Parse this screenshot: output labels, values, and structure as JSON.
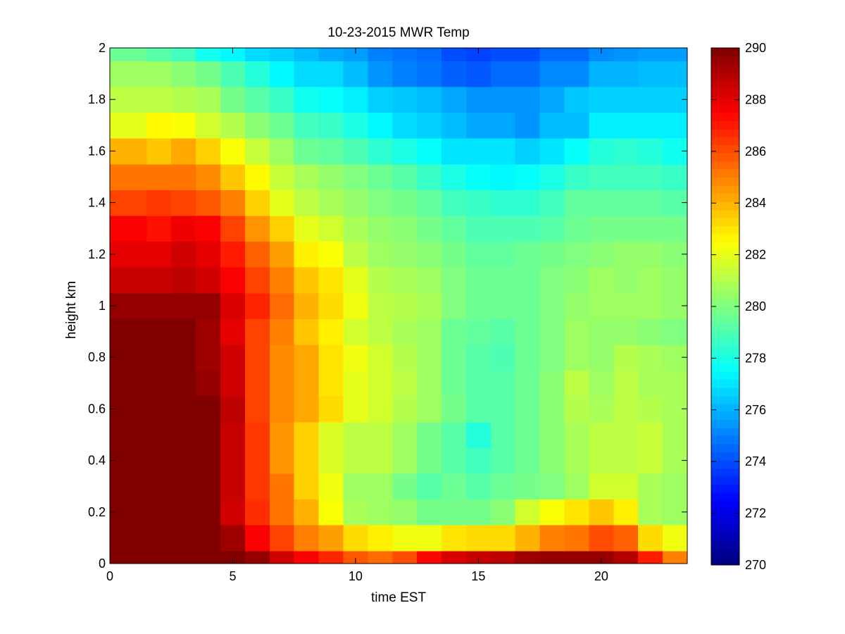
{
  "chart_data": {
    "type": "heatmap",
    "title": "10-23-2015 MWR Temp",
    "xlabel": "time EST",
    "ylabel": "height km",
    "xlim": [
      0,
      23.5
    ],
    "ylim": [
      0,
      2
    ],
    "x_ticks": [
      0,
      5,
      10,
      15,
      20
    ],
    "y_ticks": [
      0,
      0.2,
      0.4,
      0.6,
      0.8,
      1,
      1.2,
      1.4,
      1.6,
      1.8,
      2
    ],
    "x_tick_labels": [
      "0",
      "5",
      "10",
      "15",
      "20"
    ],
    "y_tick_labels": [
      "0",
      "0.2",
      "0.4",
      "0.6",
      "0.8",
      "1",
      "1.2",
      "1.4",
      "1.6",
      "1.8",
      "2"
    ],
    "colorbar": {
      "colormap": "jet",
      "range": [
        270,
        290
      ],
      "ticks": [
        270,
        272,
        274,
        276,
        278,
        280,
        282,
        284,
        286,
        288,
        290
      ],
      "tick_labels": [
        "270",
        "272",
        "274",
        "276",
        "278",
        "280",
        "282",
        "284",
        "286",
        "288",
        "290"
      ]
    },
    "x_edges": [
      0,
      1.5,
      2.5,
      3.5,
      4.5,
      5.5,
      6.5,
      7.5,
      8.5,
      9.5,
      10.5,
      11.5,
      12.5,
      13.5,
      14.5,
      15.5,
      16.5,
      17.5,
      18.5,
      19.5,
      20.5,
      21.5,
      22.5,
      23.5
    ],
    "y_edges": [
      0,
      0.05,
      0.15,
      0.25,
      0.35,
      0.45,
      0.55,
      0.65,
      0.75,
      0.85,
      0.95,
      1.05,
      1.15,
      1.25,
      1.35,
      1.45,
      1.55,
      1.65,
      1.75,
      1.85,
      1.95,
      2.0
    ],
    "z_rows_bottom_to_top": [
      [
        290,
        290,
        290,
        290,
        290,
        289.6,
        288.4,
        287.6,
        286.8,
        285.8,
        285.4,
        286,
        287.4,
        288.2,
        288.6,
        288.8,
        289.4,
        289.6,
        289.6,
        289.6,
        289,
        287,
        285
      ],
      [
        290,
        290,
        290,
        290,
        289.4,
        287.6,
        286.2,
        285,
        284.4,
        283.2,
        282.8,
        282.2,
        282.2,
        283,
        283.2,
        283.2,
        284,
        285,
        285.2,
        286,
        285.6,
        283.2,
        282.2
      ],
      [
        290,
        290,
        290,
        290,
        288.4,
        286.6,
        285.2,
        284,
        282.4,
        280.8,
        280.6,
        280.4,
        279.8,
        279.8,
        279.8,
        280.2,
        281.6,
        282.4,
        283,
        283.6,
        282.8,
        280.8,
        280.6
      ],
      [
        290,
        290,
        290,
        290,
        288.6,
        286.4,
        285.2,
        283.4,
        282.2,
        280.6,
        280.6,
        279.8,
        279.2,
        279.6,
        279.2,
        279.6,
        279.8,
        280,
        280.6,
        281.6,
        281.6,
        280.8,
        280.6
      ],
      [
        290,
        290,
        290,
        290,
        288.6,
        286.4,
        284.6,
        283.4,
        281.8,
        281.2,
        281.2,
        280.6,
        279.8,
        279.2,
        278.8,
        279.2,
        279.6,
        280.2,
        280.8,
        281.2,
        281.2,
        281.4,
        280.8
      ],
      [
        290,
        290,
        290,
        290,
        288.6,
        286.4,
        284.6,
        283.4,
        281.8,
        281.2,
        281.2,
        280.6,
        279.8,
        279.2,
        278.2,
        279.2,
        279.6,
        280.2,
        280.8,
        281.2,
        281.2,
        281.4,
        280.8
      ],
      [
        290,
        290,
        290,
        290,
        288.8,
        286.2,
        284.8,
        284.2,
        283.2,
        282,
        281.6,
        281,
        280.6,
        279.8,
        279.2,
        279.2,
        279.6,
        280.2,
        281,
        280.8,
        281.2,
        281,
        280.8
      ],
      [
        290,
        290,
        290,
        289.6,
        288.4,
        286.2,
        284.8,
        284.2,
        283,
        282,
        281.6,
        281.2,
        280.6,
        279.6,
        279.2,
        279.2,
        279.6,
        280.2,
        281.2,
        280.6,
        281.2,
        280.8,
        280.8
      ],
      [
        290,
        290,
        290,
        289.4,
        288.4,
        286.2,
        284.8,
        284.2,
        283,
        282.2,
        281.6,
        281,
        280.6,
        279.6,
        279.2,
        279,
        279.6,
        280,
        280.6,
        280.4,
        281,
        280.8,
        280.6
      ],
      [
        290,
        290,
        290,
        289.4,
        288,
        286.2,
        285,
        283.6,
        282.8,
        281.6,
        281.2,
        280.8,
        280.6,
        279.6,
        279.4,
        279.2,
        279.6,
        280,
        280.6,
        280.4,
        280.4,
        280.2,
        280
      ],
      [
        289.6,
        289.6,
        289.6,
        289.6,
        288.2,
        286.8,
        285.4,
        284,
        283.2,
        282.2,
        281.2,
        281,
        280.8,
        280,
        279.6,
        279.6,
        279.6,
        280,
        280.4,
        280.6,
        280.6,
        280.6,
        280.4
      ],
      [
        288.6,
        288.6,
        288.8,
        288.4,
        287.6,
        286.2,
        285,
        283.6,
        283,
        282,
        281,
        280.8,
        280.6,
        280,
        279.6,
        279.6,
        279.6,
        280,
        280.2,
        280.6,
        280.4,
        280.6,
        280.4
      ],
      [
        288,
        288,
        288.4,
        288,
        287,
        285.6,
        284.4,
        282.8,
        282.4,
        281.2,
        280.6,
        280.4,
        280.2,
        279.8,
        279.4,
        279.4,
        279.6,
        279.8,
        280,
        280.2,
        280.4,
        280.4,
        280.2
      ],
      [
        287.6,
        287.2,
        287.8,
        287.6,
        286.2,
        284.6,
        283.4,
        282,
        281.6,
        280.8,
        280.4,
        280.2,
        279.8,
        279.4,
        279,
        279,
        279,
        279.2,
        279.6,
        279.8,
        279.8,
        279.8,
        279.8
      ],
      [
        286.2,
        286.4,
        286.2,
        285.8,
        285,
        283.4,
        282,
        281.2,
        280.8,
        280.4,
        280,
        279.8,
        279.4,
        278.8,
        278.6,
        278.4,
        278.4,
        278.8,
        279.4,
        279.4,
        279.4,
        279.4,
        279.2
      ],
      [
        285.2,
        285.2,
        285.2,
        284.8,
        283.6,
        282.6,
        281.4,
        280.8,
        280.4,
        280,
        279.6,
        279.2,
        278.6,
        278,
        277.6,
        277.4,
        277.6,
        278,
        278.6,
        278.8,
        278.8,
        278.8,
        278.6
      ],
      [
        284,
        283.6,
        284.2,
        283.4,
        282.4,
        281.4,
        280.6,
        279.6,
        279.4,
        279,
        278.4,
        278,
        277.6,
        277,
        277,
        277,
        276.6,
        277,
        277.6,
        278.2,
        278.4,
        278.2,
        277.8
      ],
      [
        282,
        282.6,
        282.4,
        281.6,
        281,
        280.2,
        279.6,
        278.8,
        278.6,
        278,
        277.4,
        276.8,
        276.6,
        276.2,
        275.8,
        275.8,
        275.4,
        276.2,
        276.2,
        277.2,
        277.2,
        277.2,
        277.2
      ],
      [
        281.2,
        281.2,
        281,
        280.8,
        279.8,
        279.2,
        278.6,
        277.8,
        277.6,
        277.2,
        276.6,
        276.4,
        276.2,
        275.8,
        275.4,
        275.4,
        275.4,
        275.8,
        276.4,
        276.6,
        276.6,
        276.6,
        276.6
      ],
      [
        280.6,
        280.6,
        280.2,
        279.8,
        279,
        278.2,
        277.4,
        276.8,
        276.8,
        276.2,
        275.4,
        275,
        274.8,
        274.4,
        274.2,
        274.6,
        274.6,
        275.2,
        275.2,
        276,
        276,
        276.2,
        276.2
      ],
      [
        279.6,
        279.2,
        278.8,
        277.8,
        277.4,
        276.8,
        276.6,
        276.2,
        275.8,
        275.6,
        275,
        274.8,
        274.6,
        274,
        273.8,
        274,
        274,
        274.6,
        274.6,
        275.2,
        275.4,
        275.6,
        275.6
      ]
    ]
  }
}
